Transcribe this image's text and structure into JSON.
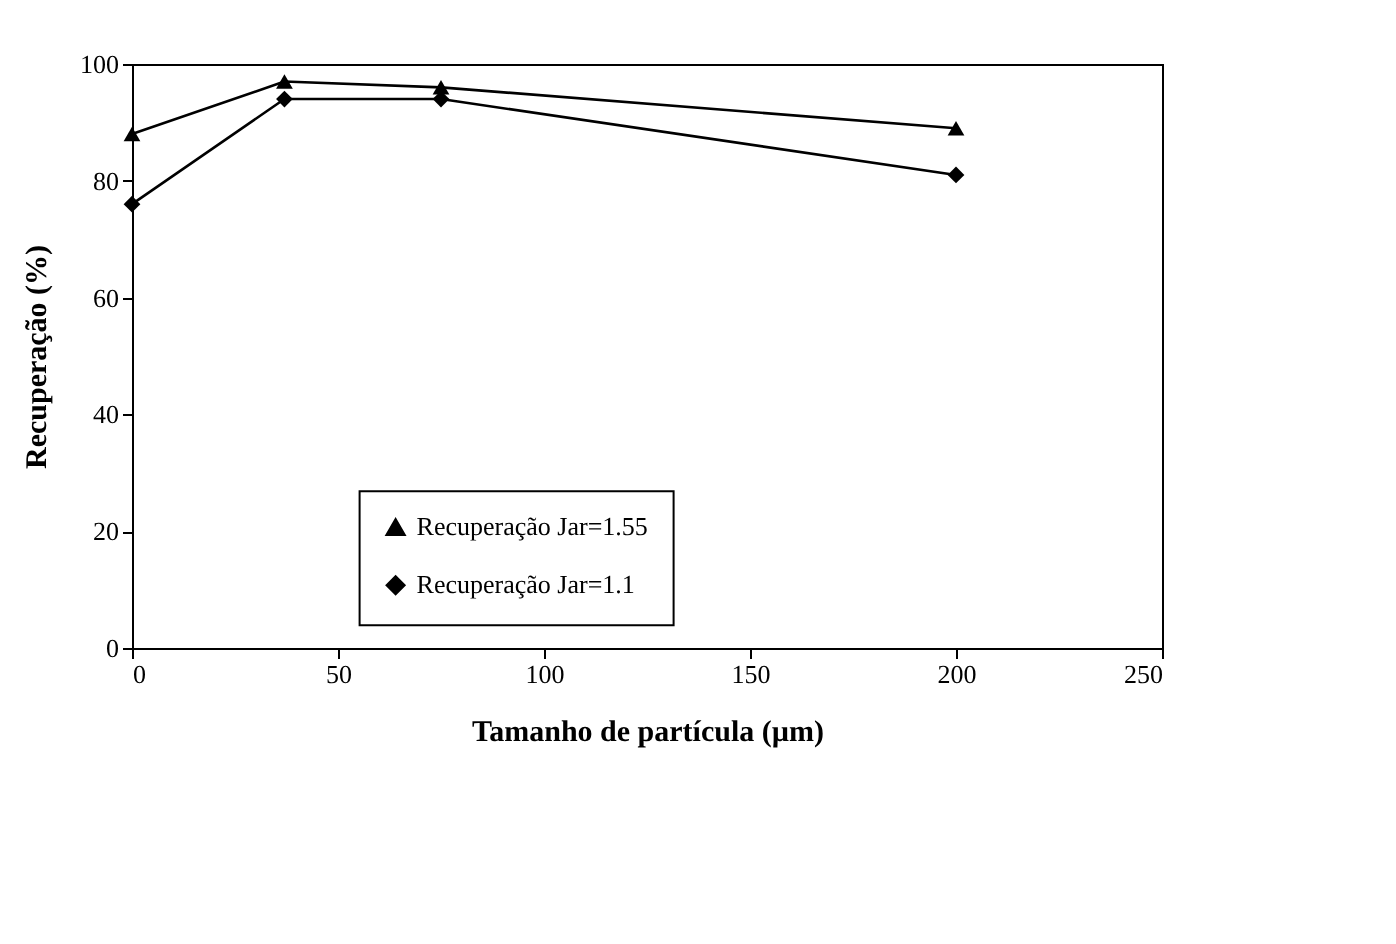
{
  "chart_data": {
    "type": "line",
    "xlabel": "Tamanho de partícula (µm)",
    "ylabel": "Recuperação (%)",
    "x": [
      0,
      37,
      75,
      200
    ],
    "series": [
      {
        "name": "Recuperação Jar=1.55",
        "color": "#000000",
        "marker": "triangle",
        "values": [
          88,
          97,
          96,
          89
        ]
      },
      {
        "name": "Recuperação Jar=1.1",
        "color": "#000000",
        "marker": "diamond",
        "values": [
          76,
          94,
          94,
          81
        ]
      }
    ],
    "xlim": [
      0,
      250
    ],
    "xticks": [
      0,
      50,
      100,
      150,
      200,
      250
    ],
    "ylim": [
      0,
      100
    ],
    "yticks": [
      0,
      20,
      40,
      60,
      80,
      100
    ],
    "grid": false,
    "legend": "bottom",
    "line_style": "solid"
  }
}
